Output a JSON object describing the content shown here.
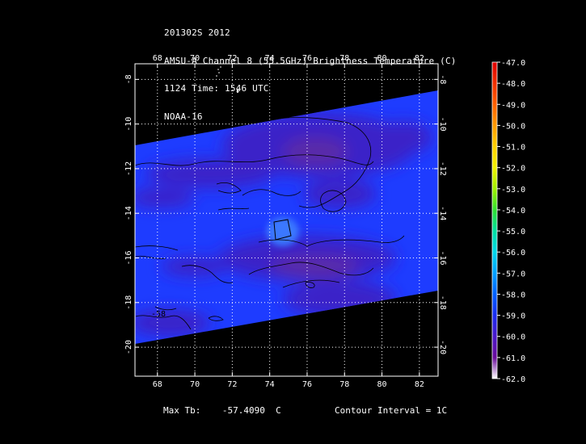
{
  "header": {
    "line1": "201302S 2012",
    "line2": "AMSU-A Channel 8 (55.5GHz) Brightness Temperature (C)",
    "line3": "1124 Time: 1546 UTC",
    "line4": "NOAA-16"
  },
  "axes": {
    "x_labels": [
      "68",
      "70",
      "72",
      "74",
      "76",
      "78",
      "80",
      "82"
    ],
    "y_labels": [
      "-8",
      "-10",
      "-12",
      "-14",
      "-16",
      "-18",
      "-20"
    ],
    "x_range": [
      66.8,
      83.0
    ],
    "y_range": [
      -7.3,
      -21.3
    ]
  },
  "colorbar": {
    "labels": [
      "-47.0",
      "-48.0",
      "-49.0",
      "-50.0",
      "-51.0",
      "-52.0",
      "-53.0",
      "-54.0",
      "-55.0",
      "-56.0",
      "-57.0",
      "-58.0",
      "-59.0",
      "-60.0",
      "-61.0",
      "-62.0"
    ],
    "colors": [
      "#e00000",
      "#f03000",
      "#ff6000",
      "#ff9a00",
      "#ffd000",
      "#f0f000",
      "#a0f000",
      "#30e030",
      "#00e0a0",
      "#00d8e8",
      "#00a0ff",
      "#0060ff",
      "#1a2cf0",
      "#4a18c8",
      "#6a0c9a",
      "#ffffff"
    ]
  },
  "contour": {
    "label": "-58"
  },
  "colors": {
    "field_base": "#1e3cff",
    "field_dark": "#3a20c8",
    "field_purple": "#5a2aa8",
    "field_light": "#3a78ff",
    "grid": "#ffffff",
    "background": "#000000"
  },
  "footer": {
    "max_tb_label": "Max Tb:",
    "max_tb_value": "-57.4090",
    "max_tb_unit": "C",
    "contour_interval": "Contour Interval = 1C"
  }
}
